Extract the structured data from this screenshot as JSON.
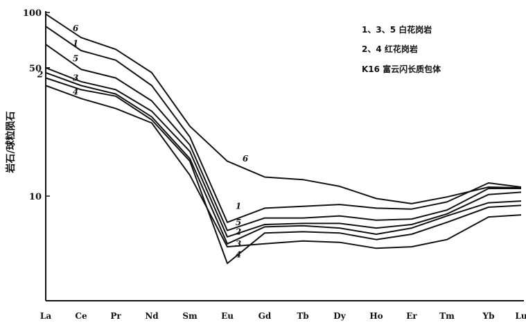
{
  "chart_data": {
    "type": "line",
    "title": "",
    "xlabel": "",
    "ylabel": "岩石/球粒陨石",
    "yscale": "log",
    "ylim": [
      2.6,
      100
    ],
    "yticks": [
      {
        "value": 100,
        "label": "100"
      },
      {
        "value": 50,
        "label": "50"
      },
      {
        "value": 10,
        "label": "10"
      }
    ],
    "categories": [
      "La",
      "Ce",
      "Pr",
      "Nd",
      "Sm",
      "Eu",
      "Gd",
      "Tb",
      "Dy",
      "Ho",
      "Er",
      "Tm",
      "Yb",
      "Lu"
    ],
    "legend": [
      "1、3、5 白花岗岩",
      "2、4 红花岗岩",
      "K16 富云闪长质包体"
    ],
    "series": [
      {
        "name": "6",
        "label_at": "Ce",
        "label_value": 82,
        "label_at_2": "Eu",
        "label_value_2": 16,
        "values": [
          98,
          73,
          63,
          47,
          24,
          15.5,
          12.7,
          12.3,
          11.3,
          9.7,
          9.1,
          9.9,
          11.2,
          11.1
        ]
      },
      {
        "name": "1",
        "label_at": "Ce",
        "label_value": 68,
        "label_at_2": "Eu",
        "label_value_2": 8.8,
        "values": [
          84,
          62,
          55,
          40,
          21,
          7.2,
          8.6,
          8.8,
          9.0,
          8.6,
          8.5,
          9.3,
          11.8,
          11.2
        ]
      },
      {
        "name": "5",
        "label_at": "Ce",
        "label_value": 56,
        "label_at_2": "Eu",
        "label_value_2": 7.2,
        "values": [
          67,
          49,
          44,
          33,
          19,
          6.5,
          7.6,
          7.6,
          7.8,
          7.4,
          7.5,
          8.4,
          11.0,
          11.0
        ]
      },
      {
        "name": "3",
        "label_at": "Ce",
        "label_value": 44,
        "label_at_2": "Eu",
        "label_value_2": 5.5,
        "values": [
          50,
          42,
          38,
          29,
          17.5,
          6.0,
          7.0,
          7.1,
          7.1,
          6.7,
          7.0,
          8.0,
          10.2,
          10.5
        ]
      },
      {
        "name": "2",
        "label_at": "La",
        "label_value": 46,
        "label_at_2": "Eu",
        "label_value_2": 6.4,
        "values": [
          47,
          40,
          36,
          27,
          16,
          5.5,
          6.8,
          6.9,
          6.7,
          6.2,
          6.7,
          7.8,
          9.2,
          9.4
        ]
      },
      {
        "name": "4",
        "label_at": "Ce",
        "label_value": 37,
        "label_at_2": "Eu",
        "label_value_2": 4.8,
        "values": [
          44,
          38,
          35,
          26,
          15.5,
          4.3,
          6.3,
          6.4,
          6.3,
          5.8,
          6.2,
          7.2,
          8.7,
          8.9
        ]
      },
      {
        "name": "K16",
        "values": [
          40,
          34,
          30,
          25,
          13,
          5.3,
          5.5,
          5.7,
          5.6,
          5.2,
          5.3,
          5.8,
          7.7,
          7.9
        ]
      }
    ]
  }
}
